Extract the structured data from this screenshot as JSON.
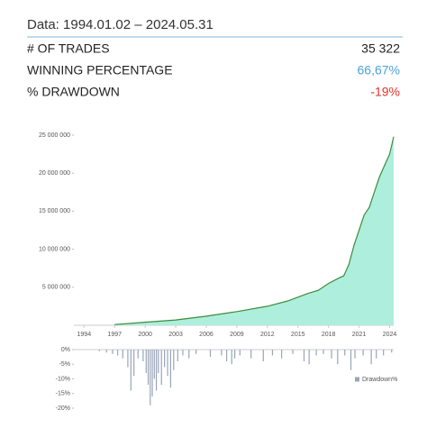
{
  "header": {
    "title": "Data: 1994.01.02 – 2024.05.31"
  },
  "stats": [
    {
      "label": "# OF TRADES",
      "value": "35 322",
      "color": "#222222"
    },
    {
      "label": "WINNING PERCENTAGE",
      "value": "66,67%",
      "color": "#4aa3d8"
    },
    {
      "label": "% DRAWDOWN",
      "value": "-19%",
      "color": "#e0332c"
    }
  ],
  "chart_data": [
    {
      "type": "area",
      "color": "#3c8c3c",
      "fill": "#aeeedc",
      "x": [
        1997.0,
        2000.0,
        2003.0,
        2006.0,
        2009.0,
        2012.0,
        2014.0,
        2015.0,
        2016.0,
        2017.0,
        2018.0,
        2019.0,
        2019.5,
        2020.0,
        2020.5,
        2021.0,
        2021.5,
        2022.0,
        2022.5,
        2023.0,
        2023.5,
        2024.0,
        2024.4
      ],
      "values": [
        100000,
        400000,
        700000,
        1200000,
        1800000,
        2500000,
        3200000,
        3700000,
        4200000,
        4600000,
        5500000,
        6200000,
        6500000,
        8000000,
        10500000,
        12500000,
        14500000,
        15500000,
        17500000,
        19500000,
        21000000,
        22500000,
        24800000
      ],
      "xlim": [
        1993,
        2024.4
      ],
      "xticks": [
        1994,
        1997,
        2000,
        2003,
        2006,
        2009,
        2012,
        2015,
        2018,
        2021,
        2024
      ],
      "ylim": [
        0,
        25000000
      ],
      "yticks": [
        {
          "value": 5000000,
          "label": "5 000 000"
        },
        {
          "value": 10000000,
          "label": "10 000 000"
        },
        {
          "value": 15000000,
          "label": "15 000 000"
        },
        {
          "value": 20000000,
          "label": "20 000 000"
        },
        {
          "value": 25000000,
          "label": "25 000 000"
        }
      ]
    },
    {
      "type": "bar",
      "legend": "right",
      "x": [
        1995.5,
        1996.2,
        1996.8,
        1997.3,
        1997.8,
        1998.3,
        1998.6,
        1998.9,
        1999.3,
        1999.8,
        2000.1,
        2000.3,
        2000.5,
        2000.7,
        2000.9,
        2001.1,
        2001.3,
        2001.6,
        2001.9,
        2002.2,
        2002.5,
        2002.8,
        2003.2,
        2003.7,
        2004.3,
        2005.0,
        2006.4,
        2007.5,
        2008.0,
        2008.5,
        2008.8,
        2009.3,
        2010.4,
        2011.6,
        2012.5,
        2013.4,
        2014.5,
        2015.6,
        2016.1,
        2016.8,
        2017.5,
        2018.3,
        2018.9,
        2019.6,
        2020.2,
        2020.6,
        2021.4,
        2022.2,
        2022.7,
        2023.4,
        2024.2
      ],
      "series": [
        {
          "name": "Drawdown%",
          "color": "#9aa5b8",
          "values": [
            -0.5,
            -1,
            -1.5,
            -2,
            -3,
            -6,
            -14,
            -9,
            -3,
            -4,
            -8,
            -12,
            -19,
            -16,
            -10,
            -14,
            -8,
            -12,
            -6,
            -9,
            -13,
            -7,
            -4,
            -2,
            -3,
            -1.5,
            -2.5,
            -2,
            -4,
            -5,
            -3,
            -2,
            -3,
            -4,
            -2,
            -3,
            -1.5,
            -4,
            -5,
            -2,
            -1.5,
            -3,
            -5,
            -2,
            -7,
            -3,
            -2,
            -5,
            -3,
            -2,
            -1
          ]
        }
      ],
      "xlim": [
        1993,
        2024.4
      ],
      "ylim": [
        -20,
        0
      ],
      "yticks": [
        {
          "value": 0,
          "label": "0%"
        },
        {
          "value": -5,
          "label": "-5%"
        },
        {
          "value": -10,
          "label": "-10%"
        },
        {
          "value": -15,
          "label": "-15%"
        },
        {
          "value": -20,
          "label": "-20%"
        }
      ]
    }
  ]
}
